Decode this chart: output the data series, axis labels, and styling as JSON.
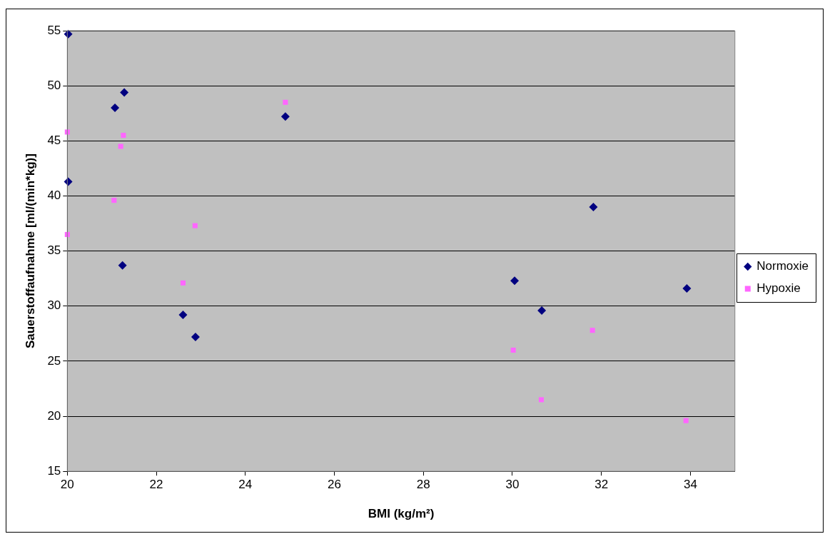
{
  "chart_data": {
    "type": "scatter",
    "xlabel": "BMI (kg/m²)",
    "ylabel": "Sauerstoffaufnahme [ml/(min*kg)]",
    "xlim": [
      20,
      35
    ],
    "xticks": [
      20,
      22,
      24,
      26,
      28,
      30,
      32,
      34
    ],
    "ylim": [
      15,
      55
    ],
    "yticks": [
      15,
      20,
      25,
      30,
      35,
      40,
      45,
      50,
      55
    ],
    "grid": "y",
    "legend": "right",
    "series": [
      {
        "name": "Normoxie",
        "color": "#000080",
        "marker": "diamond",
        "x": [
          20.02,
          20.02,
          21.07,
          21.28,
          21.24,
          24.9,
          22.6,
          22.88,
          30.05,
          30.66,
          31.82,
          33.92
        ],
        "values": [
          54.7,
          41.3,
          48.0,
          49.4,
          33.7,
          47.2,
          29.2,
          27.2,
          32.3,
          29.6,
          39.0,
          31.6
        ]
      },
      {
        "name": "Hypoxie",
        "color": "#ff66ff",
        "marker": "square",
        "x": [
          20.0,
          20.0,
          21.05,
          21.26,
          21.2,
          24.9,
          22.6,
          22.87,
          30.02,
          30.65,
          31.8,
          33.9
        ],
        "values": [
          45.8,
          36.5,
          39.6,
          45.5,
          44.5,
          48.5,
          32.1,
          37.3,
          26.0,
          21.5,
          27.8,
          19.6
        ]
      }
    ]
  }
}
